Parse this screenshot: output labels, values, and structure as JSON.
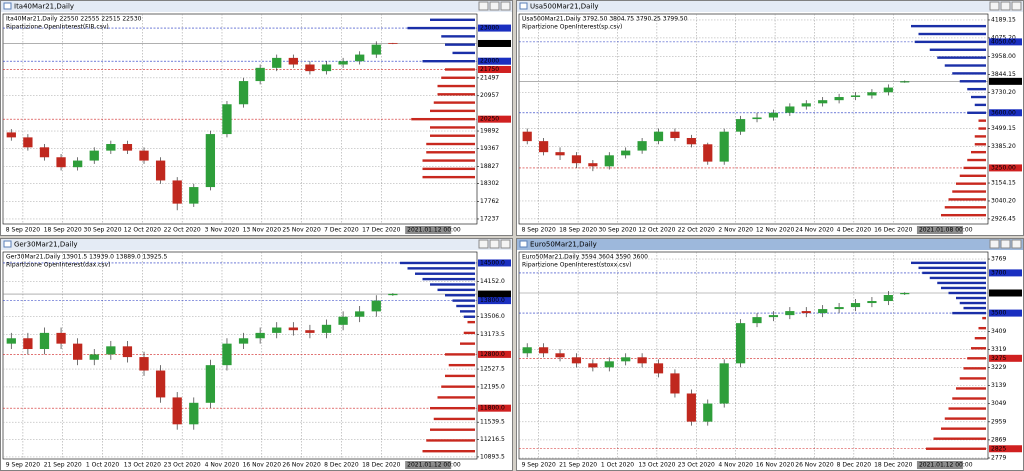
{
  "chart_data": [
    {
      "type": "candlestick",
      "title": "Ita40Mar21,Daily",
      "header": "Ita40Mar21,Daily  22550 22555 22515 22530",
      "indicator": "Ripartizione OpenInterest(FIB.csv)",
      "active": false,
      "categories": [
        "8 Sep 2020",
        "18 Sep 2020",
        "30 Sep 2020",
        "12 Oct 2020",
        "22 Oct 2020",
        "3 Nov 2020",
        "13 Nov 2020",
        "25 Nov 2020",
        "7 Dec 2020",
        "17 Dec 2020"
      ],
      "cursor_date": "2021.01.12 00:00",
      "ylim": [
        17085,
        23425
      ],
      "yticks": [
        23000,
        22535,
        22000,
        21750,
        21497,
        20957,
        20250,
        19892,
        19367,
        18827,
        18302,
        17762,
        17237
      ],
      "ytick_colors": [
        "#1a2fc0",
        "#000000",
        "#1a2fc0",
        "#d02020",
        null,
        null,
        "#d02020",
        null,
        null,
        null,
        null,
        null,
        null
      ],
      "candles": {
        "open": [
          19850,
          19700,
          19400,
          19100,
          18800,
          19000,
          19300,
          19500,
          19300,
          19000,
          18400,
          17700,
          18200,
          19800,
          20700,
          21400,
          21800,
          22100,
          21900,
          21700,
          21900,
          22000,
          22200,
          22550
        ],
        "high": [
          19950,
          19800,
          19500,
          19200,
          19100,
          19400,
          19600,
          19600,
          19400,
          19100,
          18500,
          18300,
          19900,
          20800,
          21500,
          21900,
          22200,
          22200,
          22000,
          22000,
          22100,
          22300,
          22600,
          22555
        ],
        "low": [
          19600,
          19300,
          19000,
          18700,
          18700,
          18900,
          19200,
          19200,
          18900,
          18300,
          17500,
          17600,
          18100,
          19700,
          20600,
          21300,
          21700,
          21800,
          21600,
          21600,
          21800,
          21900,
          22100,
          22515
        ],
        "close": [
          19700,
          19400,
          19100,
          18800,
          19000,
          19300,
          19500,
          19300,
          19000,
          18400,
          17700,
          18200,
          19800,
          20700,
          21400,
          21800,
          22100,
          21900,
          21700,
          21900,
          22000,
          22200,
          22500,
          22530
        ]
      },
      "open_interest": [
        {
          "color": "#1a2fa8",
          "levels": [
            23250,
            23000,
            22750,
            22500,
            22250,
            22000
          ],
          "values": [
            60,
            90,
            45,
            40,
            30,
            70
          ]
        },
        {
          "color": "#c8281e",
          "levels": [
            21750,
            21500,
            21250,
            21000,
            20750,
            20500,
            20250,
            20000,
            19750,
            19500,
            19250,
            19000,
            18750,
            18500
          ],
          "values": [
            40,
            45,
            50,
            50,
            55,
            60,
            85,
            60,
            60,
            65,
            65,
            70,
            70,
            70
          ]
        }
      ]
    },
    {
      "type": "candlestick",
      "title": "Usa500Mar21,Daily",
      "header": "Usa500Mar21,Daily  3792.50 3804.75 3790.25 3799.50",
      "indicator": "Ripartizione OpenInterest(sp.csv)",
      "active": false,
      "categories": [
        "8 Sep 2020",
        "18 Sep 2020",
        "30 Sep 2020",
        "12 Oct 2020",
        "22 Oct 2020",
        "2 Nov 2020",
        "12 Nov 2020",
        "24 Nov 2020",
        "4 Dec 2020",
        "16 Dec 2020"
      ],
      "cursor_date": "2021.01.08 00:00",
      "ylim": [
        2894,
        4227
      ],
      "yticks": [
        4189.15,
        {
          "value": 4075.2,
          "label": "4075.20"
        },
        {
          "value": 4050,
          "label": "4050.00"
        },
        {
          "value": 3958,
          "label": "3958.00"
        },
        3844.15,
        {
          "value": 3799.5,
          "label": "3799.50"
        },
        {
          "value": 3730.2,
          "label": "3730.20"
        },
        {
          "value": 3600,
          "label": "3600.00"
        },
        3499.15,
        {
          "value": 3385.2,
          "label": "3385.20"
        },
        {
          "value": 3250,
          "label": "3250.00"
        },
        3154.15,
        {
          "value": 3040.2,
          "label": "3040.20"
        },
        2926.45
      ],
      "ytick_colors": [
        null,
        null,
        "#1a2fc0",
        null,
        null,
        "#000000",
        null,
        "#1a2fc0",
        null,
        null,
        "#d02020",
        null,
        null,
        null
      ],
      "candles": {
        "open": [
          3480,
          3420,
          3350,
          3330,
          3280,
          3260,
          3330,
          3360,
          3420,
          3480,
          3440,
          3400,
          3290,
          3480,
          3560,
          3570,
          3600,
          3640,
          3660,
          3680,
          3700,
          3710,
          3730,
          3792.5
        ],
        "high": [
          3500,
          3440,
          3380,
          3350,
          3300,
          3350,
          3380,
          3440,
          3500,
          3500,
          3460,
          3410,
          3500,
          3580,
          3600,
          3620,
          3660,
          3680,
          3700,
          3720,
          3730,
          3750,
          3780,
          3804.75
        ],
        "low": [
          3400,
          3330,
          3300,
          3250,
          3230,
          3240,
          3310,
          3340,
          3400,
          3420,
          3380,
          3270,
          3270,
          3460,
          3540,
          3550,
          3580,
          3620,
          3640,
          3660,
          3680,
          3690,
          3710,
          3790.25
        ],
        "close": [
          3420,
          3350,
          3330,
          3280,
          3260,
          3330,
          3360,
          3420,
          3480,
          3440,
          3400,
          3290,
          3480,
          3560,
          3570,
          3600,
          3640,
          3660,
          3680,
          3700,
          3710,
          3730,
          3760,
          3799.5
        ]
      },
      "open_interest": [
        {
          "color": "#1a2fa8",
          "levels": [
            4150,
            4100,
            4050,
            4000,
            3950,
            3900,
            3850,
            3800,
            3750,
            3700,
            3650,
            3600
          ],
          "values": [
            100,
            90,
            95,
            75,
            65,
            55,
            45,
            35,
            25,
            20,
            15,
            25
          ]
        },
        {
          "color": "#c8281e",
          "levels": [
            3550,
            3500,
            3450,
            3400,
            3350,
            3300,
            3250,
            3200,
            3150,
            3100,
            3050,
            3000,
            2950
          ],
          "values": [
            10,
            10,
            15,
            15,
            20,
            25,
            30,
            35,
            40,
            45,
            50,
            55,
            60
          ]
        }
      ]
    },
    {
      "type": "candlestick",
      "title": "Ger30Mar21,Daily",
      "header": "Ger30Mar21,Daily  13901.5 13939.0 13889.0 13925.5",
      "indicator": "Ripartizione OpenInterest(dax.csv)",
      "active": false,
      "categories": [
        "9 Sep 2020",
        "21 Sep 2020",
        "1 Oct 2020",
        "13 Oct 2020",
        "23 Oct 2020",
        "4 Nov 2020",
        "16 Nov 2020",
        "26 Nov 2020",
        "8 Dec 2020",
        "18 Dec 2020"
      ],
      "cursor_date": "2021.01.12 00:00",
      "ylim": [
        10855,
        14704
      ],
      "yticks": [
        {
          "value": 14500,
          "label": "14500.0"
        },
        {
          "value": 14152,
          "label": "14152.0"
        },
        13921.5,
        {
          "value": 13800,
          "label": "13800.0"
        },
        {
          "value": 13506,
          "label": "13506.0"
        },
        13173.5,
        {
          "value": 12800,
          "label": "12800.0"
        },
        12527.5,
        {
          "value": 12195,
          "label": "12195.0"
        },
        {
          "value": 11800,
          "label": "11800.0"
        },
        11539.5,
        11216.5,
        10893.5
      ],
      "ytick_colors": [
        "#1a2fc0",
        null,
        "#000000",
        "#1a2fc0",
        null,
        null,
        "#d02020",
        null,
        null,
        "#d02020",
        null,
        null,
        null
      ],
      "candles": {
        "open": [
          13000,
          13100,
          12900,
          13200,
          13000,
          12700,
          12800,
          12950,
          12750,
          12500,
          12000,
          11500,
          11900,
          12600,
          13000,
          13100,
          13200,
          13300,
          13250,
          13200,
          13350,
          13500,
          13600,
          13901.5
        ],
        "high": [
          13200,
          13200,
          13300,
          13300,
          13100,
          12900,
          13050,
          13050,
          12850,
          12600,
          12100,
          12000,
          12700,
          13100,
          13200,
          13300,
          13400,
          13400,
          13350,
          13450,
          13600,
          13700,
          13900,
          13939
        ],
        "low": [
          12900,
          12800,
          12800,
          12900,
          12600,
          12600,
          12700,
          12650,
          12400,
          11900,
          11400,
          11400,
          11800,
          12500,
          12900,
          13000,
          13100,
          13150,
          13100,
          13100,
          13250,
          13400,
          13500,
          13889
        ],
        "close": [
          13100,
          12900,
          13200,
          13000,
          12700,
          12800,
          12950,
          12750,
          12500,
          12000,
          11500,
          11900,
          12600,
          13000,
          13100,
          13200,
          13300,
          13250,
          13200,
          13350,
          13500,
          13600,
          13800,
          13925.5
        ]
      },
      "open_interest": [
        {
          "color": "#1a2fa8",
          "levels": [
            14500,
            14400,
            14300,
            14200,
            14100,
            14000,
            13900,
            13800,
            13700,
            13600,
            13500
          ],
          "values": [
            100,
            90,
            80,
            70,
            60,
            50,
            40,
            30,
            25,
            20,
            15
          ]
        },
        {
          "color": "#c8281e",
          "levels": [
            13400,
            13200,
            13000,
            12800,
            12600,
            12400,
            12200,
            12000,
            11800,
            11600,
            11400,
            11200,
            11000
          ],
          "values": [
            10,
            15,
            20,
            40,
            35,
            40,
            45,
            50,
            60,
            55,
            60,
            65,
            70
          ]
        }
      ]
    },
    {
      "type": "candlestick",
      "title": "Euro50Mar21,Daily",
      "header": "Euro50Mar21,Daily  3594 3604 3590 3600",
      "indicator": "Ripartizione OpenInterest(stoxx.csv)",
      "active": true,
      "categories": [
        "9 Sep 2020",
        "21 Sep 2020",
        "1 Oct 2020",
        "13 Oct 2020",
        "23 Oct 2020",
        "4 Nov 2020",
        "16 Nov 2020",
        "26 Nov 2020",
        "8 Dec 2020",
        "18 Dec 2020"
      ],
      "cursor_date": "2021.01.12 00:00",
      "ylim": [
        2774,
        3804
      ],
      "yticks": [
        3769,
        3700,
        3600,
        3500,
        3409,
        3319,
        3275,
        3229,
        3139,
        3049,
        2959,
        2869,
        2825,
        2779
      ],
      "ytick_colors": [
        null,
        "#1a2fc0",
        "#000000",
        "#1a2fc0",
        null,
        null,
        "#d02020",
        null,
        null,
        null,
        null,
        null,
        "#d02020",
        null
      ],
      "candles": {
        "open": [
          3300,
          3330,
          3300,
          3280,
          3250,
          3230,
          3260,
          3280,
          3250,
          3200,
          3100,
          2960,
          3050,
          3250,
          3450,
          3480,
          3490,
          3510,
          3500,
          3520,
          3530,
          3550,
          3560,
          3594
        ],
        "high": [
          3350,
          3350,
          3320,
          3300,
          3270,
          3280,
          3300,
          3300,
          3270,
          3220,
          3120,
          3070,
          3270,
          3470,
          3500,
          3510,
          3530,
          3530,
          3540,
          3550,
          3570,
          3580,
          3610,
          3604
        ],
        "low": [
          3280,
          3280,
          3260,
          3230,
          3210,
          3210,
          3240,
          3230,
          3180,
          3080,
          2940,
          2940,
          3030,
          3230,
          3430,
          3460,
          3470,
          3480,
          3480,
          3500,
          3510,
          3530,
          3540,
          3590
        ],
        "close": [
          3330,
          3300,
          3280,
          3250,
          3230,
          3260,
          3280,
          3250,
          3200,
          3100,
          2960,
          3050,
          3250,
          3450,
          3480,
          3490,
          3510,
          3500,
          3520,
          3530,
          3550,
          3560,
          3590,
          3600
        ]
      },
      "open_interest": [
        {
          "color": "#1a2fa8",
          "levels": [
            3750,
            3725,
            3700,
            3675,
            3650,
            3625,
            3600,
            3575,
            3550,
            3525,
            3500
          ],
          "values": [
            100,
            90,
            85,
            75,
            65,
            60,
            50,
            40,
            35,
            30,
            45
          ]
        },
        {
          "color": "#c8281e",
          "levels": [
            3475,
            3425,
            3375,
            3325,
            3275,
            3225,
            3175,
            3125,
            3075,
            3025,
            2975,
            2925,
            2875,
            2825
          ],
          "values": [
            5,
            10,
            15,
            20,
            25,
            30,
            35,
            40,
            45,
            50,
            55,
            60,
            70,
            80
          ]
        }
      ]
    }
  ]
}
